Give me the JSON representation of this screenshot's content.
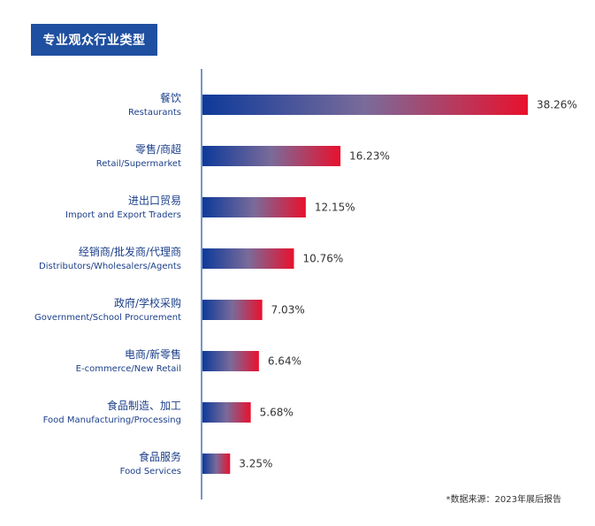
{
  "title": "专业观众行业类型",
  "source_note": "*数据来源：2023年展后报告",
  "colors": {
    "bar_start": "#0d3a9a",
    "bar_mid": "#7a6b9a",
    "bar_end": "#e8112d",
    "title_bg": "#1f4fa0",
    "axis": "#1f4fa0",
    "label": "#1b3f8a"
  },
  "chart_data": {
    "type": "bar",
    "orientation": "horizontal",
    "title": "专业观众行业类型",
    "categories": [
      {
        "zh": "餐饮",
        "en": "Restaurants"
      },
      {
        "zh": "零售/商超",
        "en": "Retail/Supermarket"
      },
      {
        "zh": "进出口贸易",
        "en": "Import and Export Traders"
      },
      {
        "zh": "经销商/批发商/代理商",
        "en": "Distributors/Wholesalers/Agents"
      },
      {
        "zh": "政府/学校采购",
        "en": "Government/School Procurement"
      },
      {
        "zh": "电商/新零售",
        "en": "E-commerce/New Retail"
      },
      {
        "zh": "食品制造、加工",
        "en": "Food Manufacturing/Processing"
      },
      {
        "zh": "食品服务",
        "en": "Food Services"
      }
    ],
    "values": [
      38.26,
      16.23,
      12.15,
      10.76,
      7.03,
      6.64,
      5.68,
      3.25
    ],
    "value_labels": [
      "38.26%",
      "16.23%",
      "12.15%",
      "10.76%",
      "7.03%",
      "6.64%",
      "5.68%",
      "3.25%"
    ],
    "xlim": [
      0,
      38.26
    ],
    "grid": false,
    "legend": "none"
  }
}
